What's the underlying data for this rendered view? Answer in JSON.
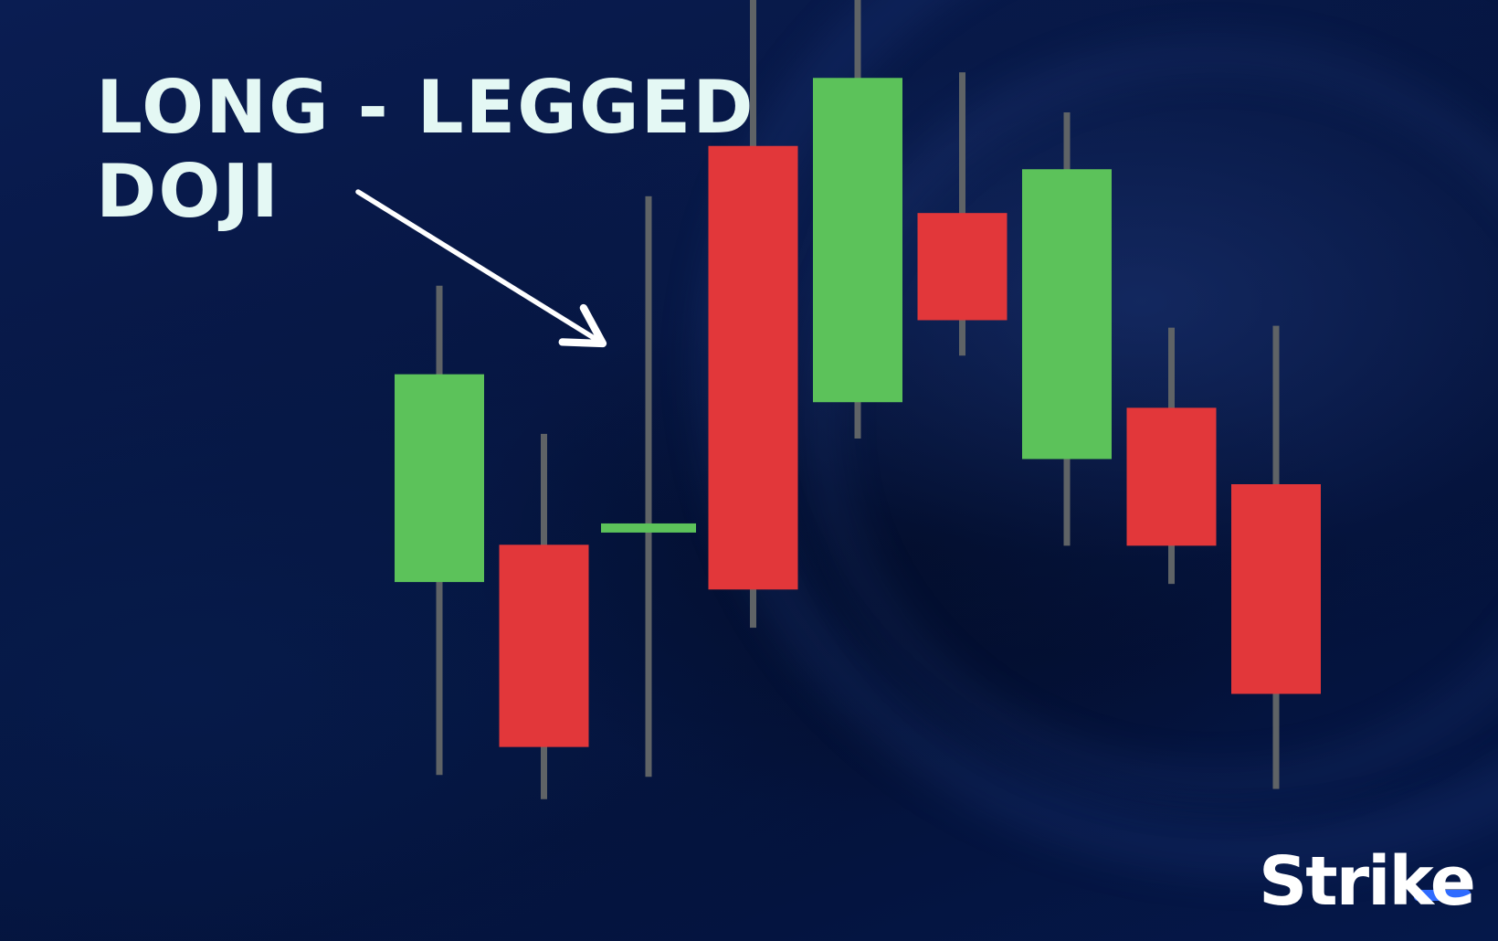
{
  "header": {
    "title_line1": "LONG - LEGGED",
    "title_line2": "DOJI"
  },
  "brand": {
    "name": "Strike",
    "accent_color": "#2f6bff"
  },
  "colors": {
    "bullish": "#5cc25a",
    "bearish": "#e2373a",
    "wick": "#5f6366",
    "doji_body": "#5cc25a",
    "title_text": "#e4f8f4",
    "arrow": "#ffffff"
  },
  "annotation": {
    "arrow_icon": "arrow-pointer-icon",
    "points_to_candle": 3
  },
  "chart_data": {
    "type": "candlestick",
    "title": "LONG - LEGGED DOJI",
    "xlabel": "",
    "ylabel": "",
    "grid": false,
    "ylim": [
      0,
      100
    ],
    "candles": [
      {
        "open": 39.5,
        "close": 61.8,
        "high": 71.3,
        "low": 18.8,
        "direction": "bullish"
      },
      {
        "open": 43.5,
        "close": 21.8,
        "high": 55.4,
        "low": 16.2,
        "direction": "bearish"
      },
      {
        "open": 45.3,
        "close": 45.3,
        "high": 80.9,
        "low": 18.6,
        "direction": "doji"
      },
      {
        "open": 86.3,
        "close": 38.7,
        "high": 109.8,
        "low": 34.6,
        "direction": "bearish"
      },
      {
        "open": 58.8,
        "close": 93.6,
        "high": 102.6,
        "low": 54.9,
        "direction": "bullish"
      },
      {
        "open": 79.1,
        "close": 67.6,
        "high": 94.2,
        "low": 63.8,
        "direction": "bearish"
      },
      {
        "open": 52.7,
        "close": 83.8,
        "high": 89.9,
        "low": 43.4,
        "direction": "bullish"
      },
      {
        "open": 58.2,
        "close": 43.4,
        "high": 66.8,
        "low": 39.3,
        "direction": "bearish"
      },
      {
        "open": 50.0,
        "close": 27.5,
        "high": 67.0,
        "low": 17.3,
        "direction": "bearish"
      }
    ]
  }
}
